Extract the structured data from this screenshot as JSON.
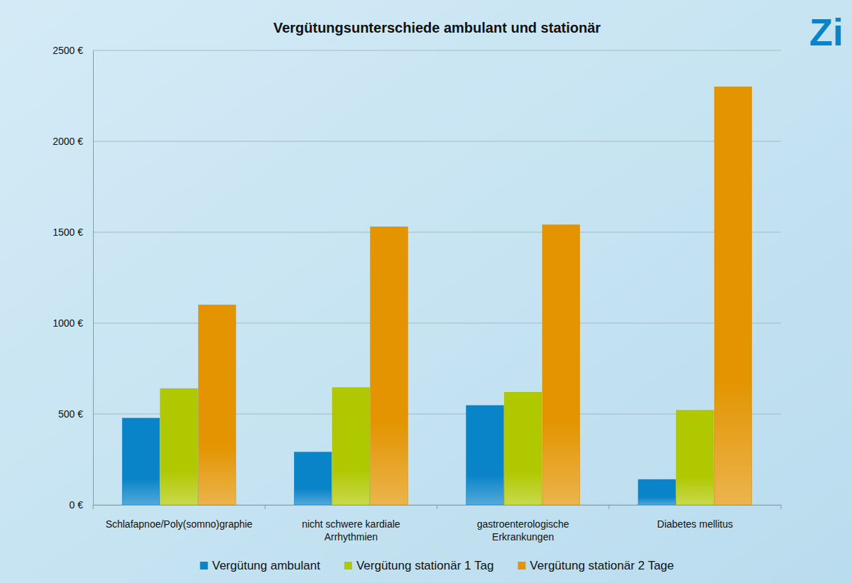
{
  "chart_data": {
    "type": "bar",
    "title": "Vergütungsunterschiede ambulant und stationär",
    "annotations": [
      "Zi"
    ],
    "categories": [
      "Schlafapnoe/Poly(somno)graphie",
      "nicht schwere kardiale Arrhythmien",
      "gastroenterologische Erkrankungen",
      "Diabetes mellitus"
    ],
    "series": [
      {
        "name": "Vergütung ambulant",
        "color": "#0a84c8",
        "values": [
          477,
          290,
          547,
          140
        ]
      },
      {
        "name": "Vergütung stationär 1 Tag",
        "color": "#b0c800",
        "values": [
          640,
          645,
          620,
          520
        ]
      },
      {
        "name": "Vergütung stationär 2 Tage",
        "color": "#e39400",
        "values": [
          1100,
          1530,
          1540,
          2300
        ]
      }
    ],
    "ylim": [
      0,
      2500
    ],
    "yticks": [
      {
        "value": 0,
        "label": "0 €"
      },
      {
        "value": 500,
        "label": "500 €"
      },
      {
        "value": 1000,
        "label": "1000 €"
      },
      {
        "value": 1500,
        "label": "1500 €"
      },
      {
        "value": 2000,
        "label": "2000 €"
      },
      {
        "value": 2500,
        "label": "2500 €"
      }
    ],
    "grid": true,
    "legend": "bottom"
  }
}
